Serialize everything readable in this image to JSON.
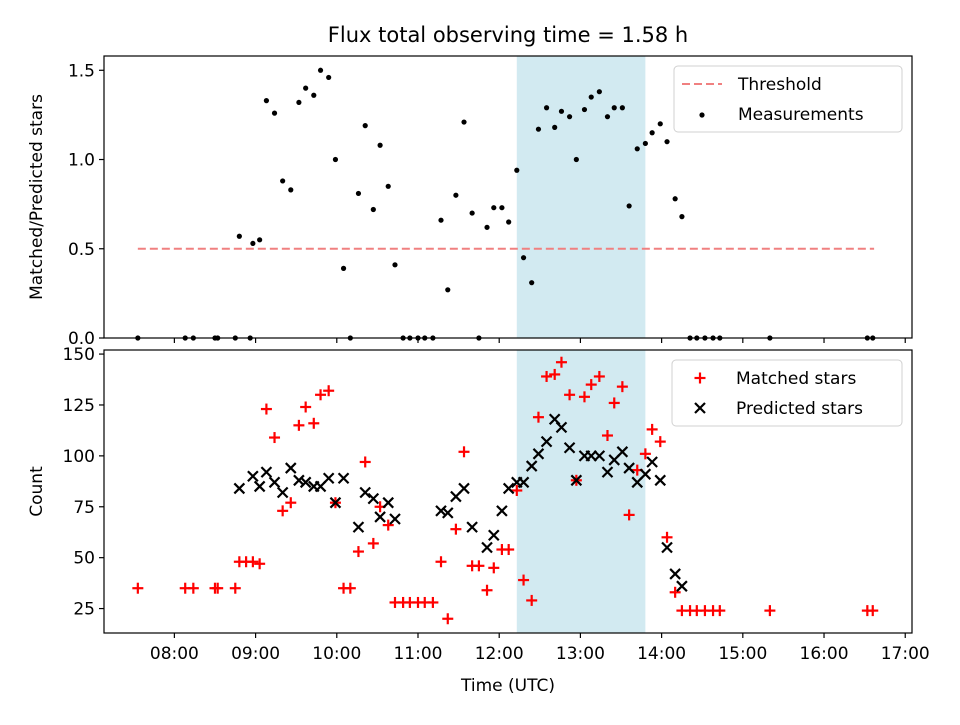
{
  "figure": {
    "title": "Flux total observing time = 1.58 h"
  },
  "colors": {
    "threshold": "#f08080",
    "measurements": "#000000",
    "matched": "#ff0000",
    "predicted": "#000000",
    "observing_window": "#add8e6"
  },
  "chart_data": [
    {
      "type": "scatter",
      "ylabel": "Matched/Predicted stars",
      "xlabel": "",
      "x_axis": "time (hours UTC)",
      "xlim": [
        "07:08",
        "17:05"
      ],
      "ylim": [
        0,
        1.58
      ],
      "yticks": [
        "0.0",
        "0.5",
        "1.0",
        "1.5"
      ],
      "grid": false,
      "legend_position": "top-right",
      "shaded_region": {
        "x_start": "12:13",
        "x_end": "13:48"
      },
      "threshold": {
        "name": "Threshold",
        "value": 0.5,
        "x_start": "07:33",
        "x_end": "16:37",
        "style": "dashed"
      },
      "series": [
        {
          "name": "Measurements",
          "marker": "dot",
          "points": [
            [
              "07:33",
              0.0
            ],
            [
              "08:08",
              0.0
            ],
            [
              "08:14",
              0.0
            ],
            [
              "08:30",
              0.0
            ],
            [
              "08:32",
              0.0
            ],
            [
              "08:45",
              0.0
            ],
            [
              "08:48",
              0.57
            ],
            [
              "08:56",
              0.0
            ],
            [
              "08:58",
              0.53
            ],
            [
              "09:03",
              0.55
            ],
            [
              "09:08",
              1.33
            ],
            [
              "09:14",
              1.26
            ],
            [
              "09:20",
              0.88
            ],
            [
              "09:26",
              0.83
            ],
            [
              "09:32",
              1.32
            ],
            [
              "09:37",
              1.4
            ],
            [
              "09:43",
              1.36
            ],
            [
              "09:48",
              1.5
            ],
            [
              "09:54",
              1.46
            ],
            [
              "09:59",
              1.0
            ],
            [
              "10:05",
              0.39
            ],
            [
              "10:10",
              0.0
            ],
            [
              "10:16",
              0.81
            ],
            [
              "10:21",
              1.19
            ],
            [
              "10:27",
              0.72
            ],
            [
              "10:32",
              1.08
            ],
            [
              "10:38",
              0.85
            ],
            [
              "10:43",
              0.41
            ],
            [
              "10:49",
              0.0
            ],
            [
              "10:54",
              0.0
            ],
            [
              "11:00",
              0.0
            ],
            [
              "11:05",
              0.0
            ],
            [
              "11:11",
              0.0
            ],
            [
              "11:17",
              0.66
            ],
            [
              "11:22",
              0.27
            ],
            [
              "11:28",
              0.8
            ],
            [
              "11:34",
              1.21
            ],
            [
              "11:40",
              0.7
            ],
            [
              "11:45",
              0.0
            ],
            [
              "11:51",
              0.62
            ],
            [
              "11:56",
              0.73
            ],
            [
              "12:02",
              0.73
            ],
            [
              "12:07",
              0.65
            ],
            [
              "12:13",
              0.94
            ],
            [
              "12:18",
              0.45
            ],
            [
              "12:24",
              0.31
            ],
            [
              "12:29",
              1.17
            ],
            [
              "12:35",
              1.29
            ],
            [
              "12:41",
              1.18
            ],
            [
              "12:46",
              1.27
            ],
            [
              "12:52",
              1.24
            ],
            [
              "12:57",
              1.0
            ],
            [
              "13:03",
              1.28
            ],
            [
              "13:08",
              1.35
            ],
            [
              "13:14",
              1.38
            ],
            [
              "13:20",
              1.24
            ],
            [
              "13:25",
              1.29
            ],
            [
              "13:31",
              1.29
            ],
            [
              "13:36",
              0.74
            ],
            [
              "13:42",
              1.06
            ],
            [
              "13:48",
              1.09
            ],
            [
              "13:53",
              1.15
            ],
            [
              "13:59",
              1.2
            ],
            [
              "14:04",
              1.1
            ],
            [
              "14:10",
              0.78
            ],
            [
              "14:15",
              0.68
            ],
            [
              "14:21",
              0.0
            ],
            [
              "14:26",
              0.0
            ],
            [
              "14:32",
              0.0
            ],
            [
              "14:38",
              0.0
            ],
            [
              "14:43",
              0.0
            ],
            [
              "15:20",
              0.0
            ],
            [
              "16:32",
              0.0
            ],
            [
              "16:36",
              0.0
            ]
          ]
        }
      ]
    },
    {
      "type": "scatter",
      "ylabel": "Count",
      "xlabel": "Time (UTC)",
      "x_axis": "time (hours UTC)",
      "xlim": [
        "07:08",
        "17:05"
      ],
      "ylim": [
        13,
        152
      ],
      "yticks": [
        "25",
        "50",
        "75",
        "100",
        "125",
        "150"
      ],
      "xticks": [
        "08:00",
        "09:00",
        "10:00",
        "11:00",
        "12:00",
        "13:00",
        "14:00",
        "15:00",
        "16:00",
        "17:00"
      ],
      "grid": false,
      "legend_position": "top-right",
      "shaded_region": {
        "x_start": "12:13",
        "x_end": "13:48"
      },
      "series": [
        {
          "name": "Matched stars",
          "marker": "plus",
          "points": [
            [
              "07:33",
              35
            ],
            [
              "08:08",
              35
            ],
            [
              "08:14",
              35
            ],
            [
              "08:30",
              35
            ],
            [
              "08:32",
              35
            ],
            [
              "08:45",
              35
            ],
            [
              "08:48",
              48
            ],
            [
              "08:53",
              48
            ],
            [
              "08:58",
              48
            ],
            [
              "09:03",
              47
            ],
            [
              "09:08",
              123
            ],
            [
              "09:14",
              109
            ],
            [
              "09:20",
              73
            ],
            [
              "09:26",
              77
            ],
            [
              "09:32",
              115
            ],
            [
              "09:37",
              124
            ],
            [
              "09:43",
              116
            ],
            [
              "09:48",
              130
            ],
            [
              "09:54",
              132
            ],
            [
              "09:59",
              77
            ],
            [
              "10:05",
              35
            ],
            [
              "10:10",
              35
            ],
            [
              "10:16",
              53
            ],
            [
              "10:21",
              97
            ],
            [
              "10:27",
              57
            ],
            [
              "10:32",
              75
            ],
            [
              "10:38",
              66
            ],
            [
              "10:43",
              28
            ],
            [
              "10:49",
              28
            ],
            [
              "10:54",
              28
            ],
            [
              "11:00",
              28
            ],
            [
              "11:05",
              28
            ],
            [
              "11:11",
              28
            ],
            [
              "11:17",
              48
            ],
            [
              "11:22",
              20
            ],
            [
              "11:28",
              64
            ],
            [
              "11:34",
              102
            ],
            [
              "11:40",
              46
            ],
            [
              "11:45",
              46
            ],
            [
              "11:51",
              34
            ],
            [
              "11:56",
              45
            ],
            [
              "12:02",
              54
            ],
            [
              "12:07",
              54
            ],
            [
              "12:13",
              83
            ],
            [
              "12:18",
              39
            ],
            [
              "12:24",
              29
            ],
            [
              "12:29",
              119
            ],
            [
              "12:35",
              139
            ],
            [
              "12:41",
              140
            ],
            [
              "12:46",
              146
            ],
            [
              "12:52",
              130
            ],
            [
              "12:57",
              88
            ],
            [
              "13:03",
              129
            ],
            [
              "13:08",
              135
            ],
            [
              "13:14",
              139
            ],
            [
              "13:20",
              110
            ],
            [
              "13:25",
              126
            ],
            [
              "13:31",
              134
            ],
            [
              "13:36",
              71
            ],
            [
              "13:42",
              93
            ],
            [
              "13:48",
              101
            ],
            [
              "13:53",
              113
            ],
            [
              "13:59",
              107
            ],
            [
              "14:04",
              60
            ],
            [
              "14:10",
              33
            ],
            [
              "14:15",
              24
            ],
            [
              "14:21",
              24
            ],
            [
              "14:26",
              24
            ],
            [
              "14:32",
              24
            ],
            [
              "14:38",
              24
            ],
            [
              "14:43",
              24
            ],
            [
              "15:20",
              24
            ],
            [
              "16:32",
              24
            ],
            [
              "16:36",
              24
            ]
          ]
        },
        {
          "name": "Predicted stars",
          "marker": "x",
          "points": [
            [
              "08:48",
              84
            ],
            [
              "08:58",
              90
            ],
            [
              "09:03",
              85
            ],
            [
              "09:08",
              92
            ],
            [
              "09:14",
              87
            ],
            [
              "09:20",
              82
            ],
            [
              "09:26",
              94
            ],
            [
              "09:32",
              88
            ],
            [
              "09:37",
              87
            ],
            [
              "09:43",
              85
            ],
            [
              "09:48",
              85
            ],
            [
              "09:54",
              89
            ],
            [
              "09:59",
              77
            ],
            [
              "10:05",
              89
            ],
            [
              "10:16",
              65
            ],
            [
              "10:21",
              82
            ],
            [
              "10:27",
              79
            ],
            [
              "10:32",
              70
            ],
            [
              "10:38",
              77
            ],
            [
              "10:43",
              69
            ],
            [
              "11:17",
              73
            ],
            [
              "11:22",
              72
            ],
            [
              "11:28",
              80
            ],
            [
              "11:34",
              84
            ],
            [
              "11:40",
              65
            ],
            [
              "11:51",
              55
            ],
            [
              "11:56",
              61
            ],
            [
              "12:02",
              73
            ],
            [
              "12:07",
              84
            ],
            [
              "12:13",
              87
            ],
            [
              "12:18",
              87
            ],
            [
              "12:24",
              95
            ],
            [
              "12:29",
              101
            ],
            [
              "12:35",
              107
            ],
            [
              "12:41",
              118
            ],
            [
              "12:46",
              114
            ],
            [
              "12:52",
              104
            ],
            [
              "12:57",
              88
            ],
            [
              "13:03",
              100
            ],
            [
              "13:08",
              100
            ],
            [
              "13:14",
              100
            ],
            [
              "13:20",
              92
            ],
            [
              "13:25",
              98
            ],
            [
              "13:31",
              102
            ],
            [
              "13:36",
              94
            ],
            [
              "13:42",
              87
            ],
            [
              "13:48",
              91
            ],
            [
              "13:53",
              97
            ],
            [
              "13:59",
              88
            ],
            [
              "14:04",
              55
            ],
            [
              "14:10",
              42
            ],
            [
              "14:15",
              36
            ]
          ]
        }
      ]
    }
  ]
}
